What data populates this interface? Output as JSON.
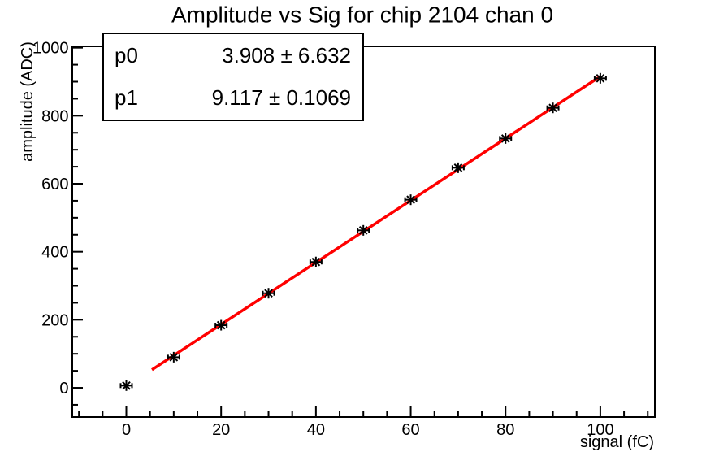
{
  "chart_data": {
    "type": "scatter",
    "title": "Amplitude vs Sig for chip 2104 chan 0",
    "xlabel": "signal (fC)",
    "ylabel": "amplitude (ADC)",
    "x": [
      0,
      10,
      20,
      30,
      40,
      50,
      60,
      70,
      80,
      90,
      100
    ],
    "y": [
      6.5,
      90,
      184,
      278,
      370,
      463,
      553,
      647,
      733,
      823,
      910
    ],
    "x_err": 1.2,
    "x_ticks": [
      0,
      20,
      40,
      60,
      80,
      100
    ],
    "y_ticks": [
      0,
      200,
      400,
      600,
      800,
      1000
    ],
    "x_minor_step": 5,
    "y_minor_step": 50,
    "xlim": [
      -11.4,
      111.5
    ],
    "ylim": [
      -86,
      1004
    ],
    "grid": false,
    "marker": "asterisk",
    "fit": {
      "type": "linear",
      "p0": 3.908,
      "p0_err": 6.632,
      "p1": 9.117,
      "p1_err": 0.1069,
      "range": [
        5.4,
        100
      ]
    },
    "colors": {
      "background": "#ffffff",
      "axis": "#000000",
      "marker": "#000000",
      "fit_line": "#ff0000"
    }
  },
  "stats_box": {
    "rows": [
      {
        "name": "p0",
        "value": "3.908 ± 6.632"
      },
      {
        "name": "p1",
        "value": "9.117 ± 0.1069"
      }
    ]
  }
}
